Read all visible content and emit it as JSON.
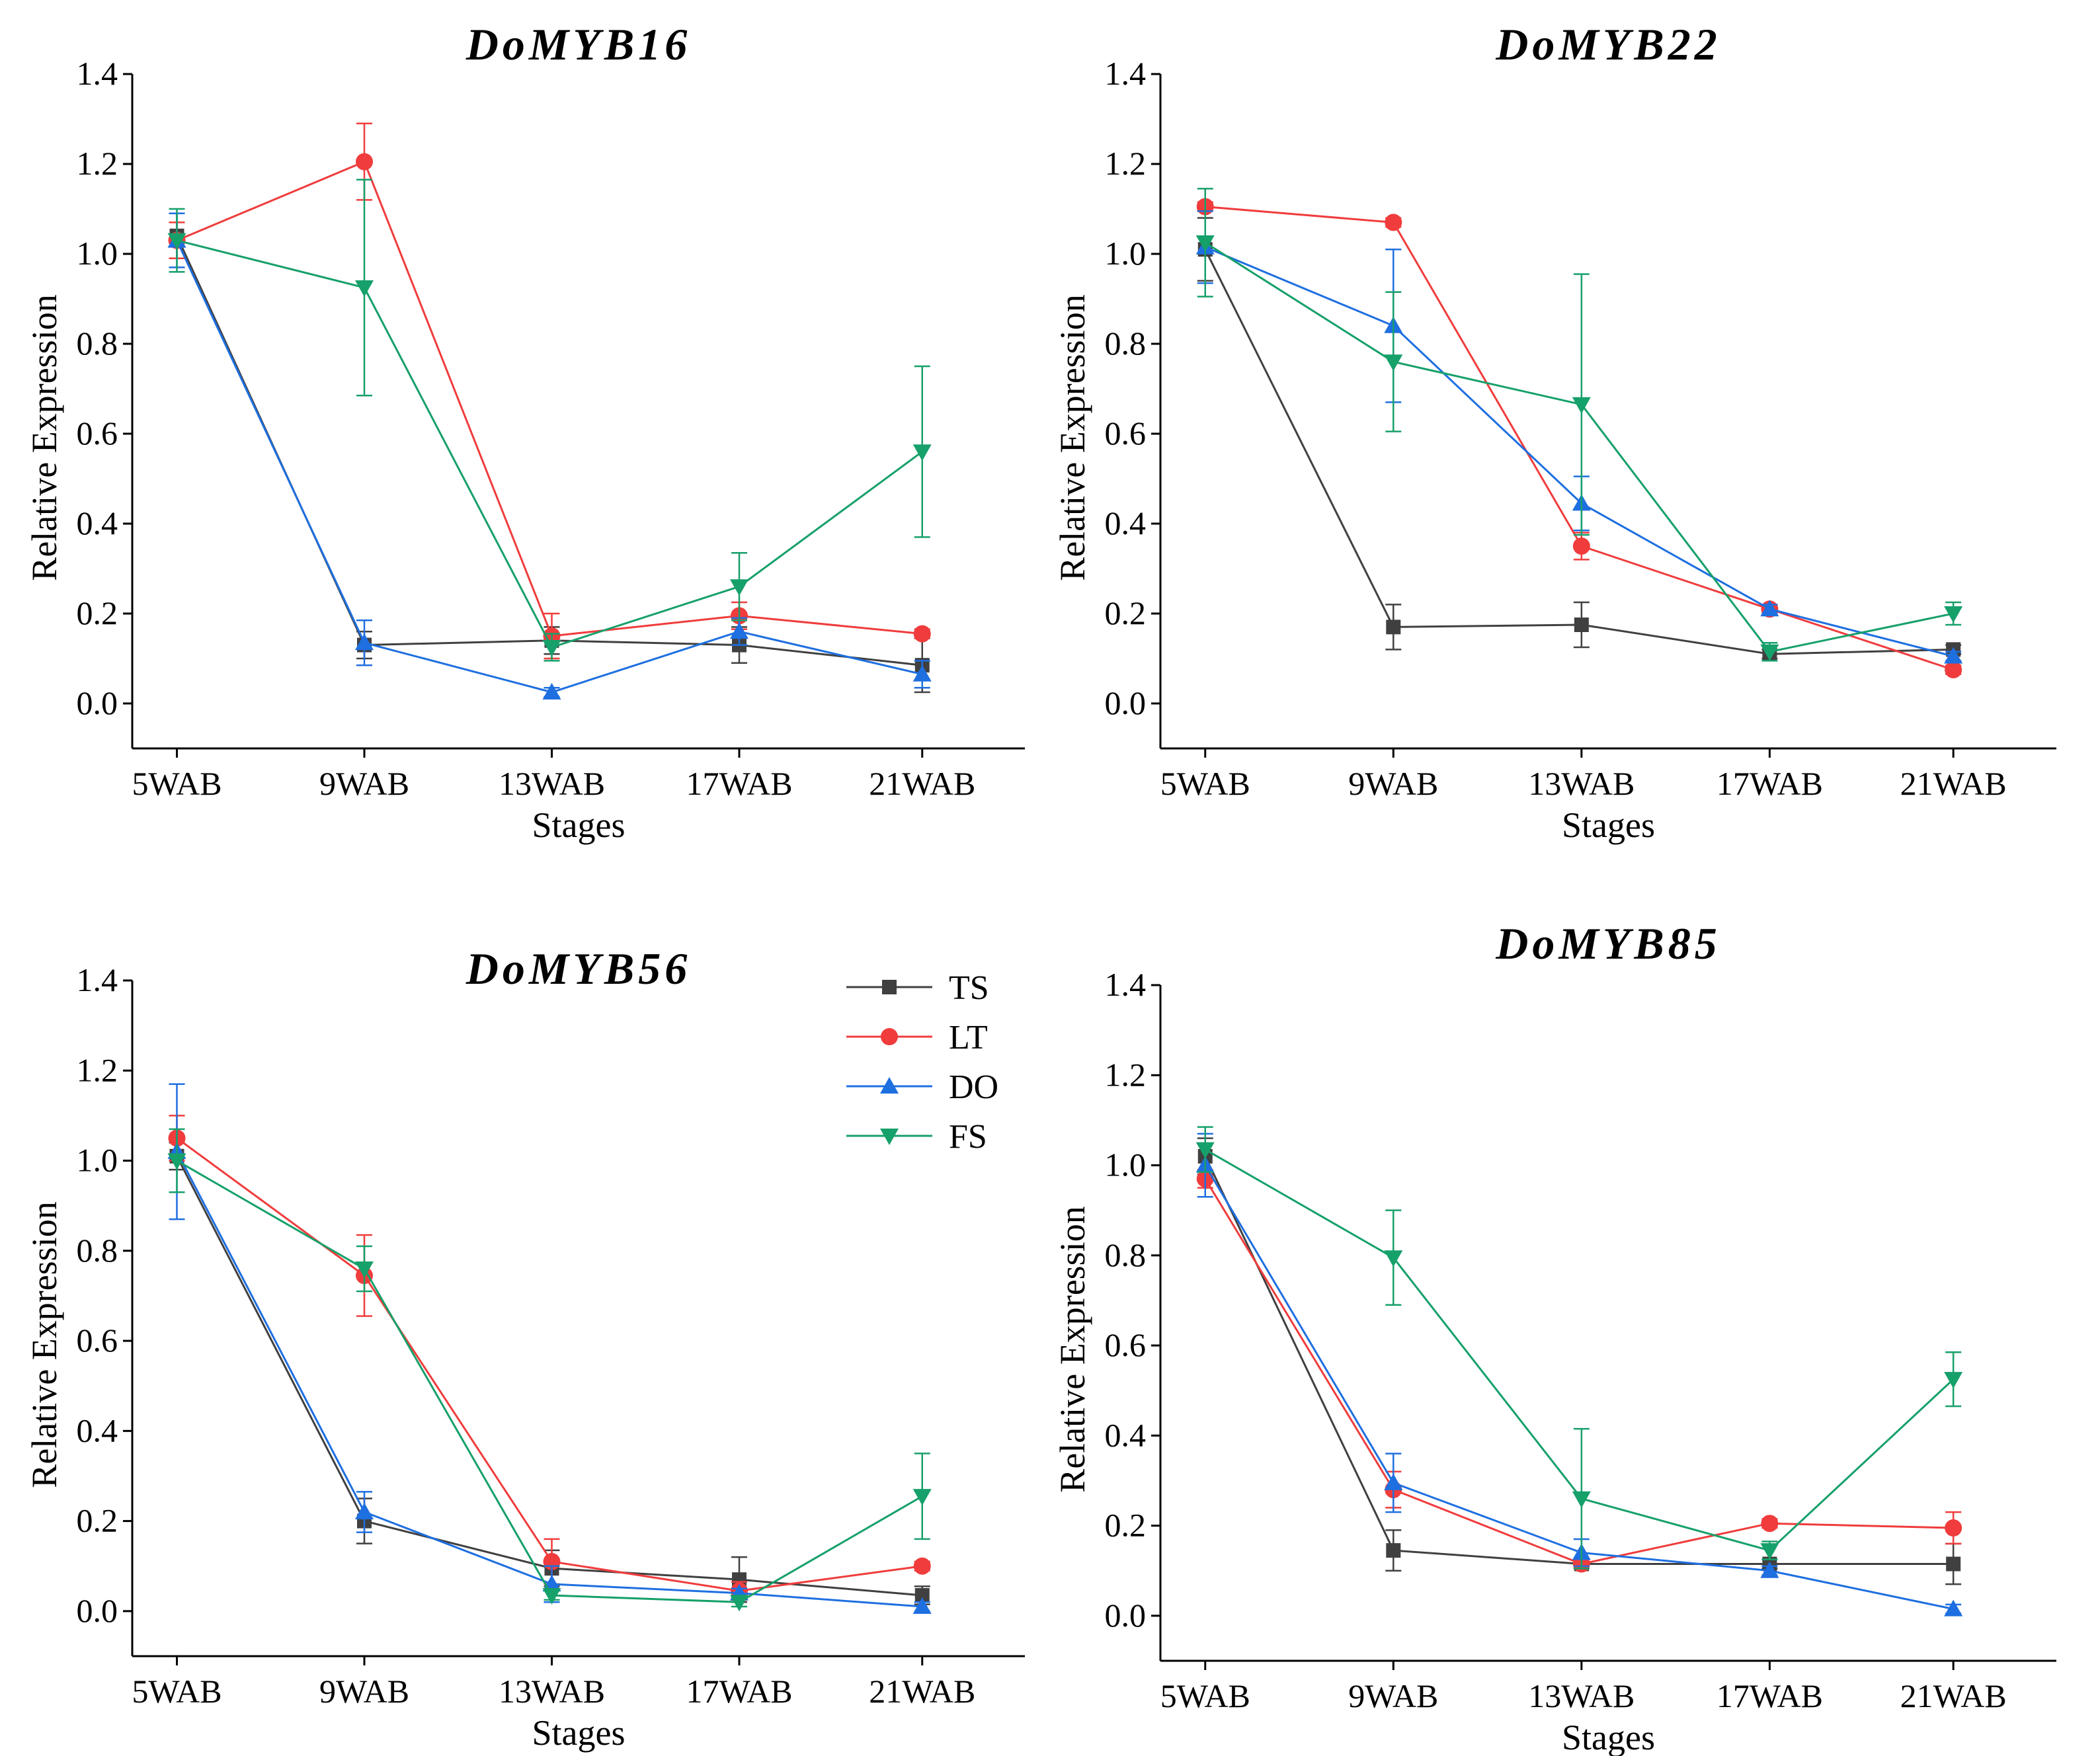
{
  "chart_data": [
    {
      "type": "line",
      "title": "DoMYB16",
      "xlabel": "Stages",
      "ylabel": "Relative Expression",
      "categories": [
        "5WAB",
        "9WAB",
        "13WAB",
        "17WAB",
        "21WAB"
      ],
      "ylim": [
        -0.1,
        1.4
      ],
      "yticks": [
        "0.0",
        "0.2",
        "0.4",
        "0.6",
        "0.8",
        "1.0",
        "1.2",
        "1.4"
      ],
      "series": [
        {
          "name": "TS",
          "values": [
            1.04,
            0.13,
            0.14,
            0.13,
            0.085
          ],
          "errors": [
            0.05,
            0.03,
            0.03,
            0.04,
            0.06
          ]
        },
        {
          "name": "LT",
          "values": [
            1.03,
            1.205,
            0.15,
            0.195,
            0.155
          ],
          "errors": [
            0.04,
            0.085,
            0.05,
            0.03,
            0.01
          ]
        },
        {
          "name": "DO",
          "values": [
            1.03,
            0.135,
            0.025,
            0.16,
            0.065
          ],
          "errors": [
            0.06,
            0.05,
            0.01,
            0.03,
            0.03
          ]
        },
        {
          "name": "FS",
          "values": [
            1.03,
            0.925,
            0.125,
            0.26,
            0.56
          ],
          "errors": [
            0.07,
            0.24,
            0.03,
            0.075,
            0.19
          ]
        }
      ]
    },
    {
      "type": "line",
      "title": "DoMYB22",
      "xlabel": "Stages",
      "ylabel": "Relative Expression",
      "categories": [
        "5WAB",
        "9WAB",
        "13WAB",
        "17WAB",
        "21WAB"
      ],
      "ylim": [
        -0.1,
        1.4
      ],
      "yticks": [
        "0.0",
        "0.2",
        "0.4",
        "0.6",
        "0.8",
        "1.0",
        "1.2",
        "1.4"
      ],
      "series": [
        {
          "name": "TS",
          "values": [
            1.01,
            0.17,
            0.175,
            0.11,
            0.12
          ],
          "errors": [
            0.07,
            0.05,
            0.05,
            0.01,
            0.01
          ]
        },
        {
          "name": "LT",
          "values": [
            1.105,
            1.07,
            0.35,
            0.21,
            0.075
          ],
          "errors": [
            0.01,
            0.01,
            0.03,
            0.01,
            0.01
          ]
        },
        {
          "name": "DO",
          "values": [
            1.015,
            0.84,
            0.445,
            0.21,
            0.105
          ],
          "errors": [
            0.08,
            0.17,
            0.06,
            0.01,
            0.01
          ]
        },
        {
          "name": "FS",
          "values": [
            1.025,
            0.76,
            0.665,
            0.115,
            0.2
          ],
          "errors": [
            0.12,
            0.155,
            0.29,
            0.02,
            0.025
          ]
        }
      ]
    },
    {
      "type": "line",
      "title": "DoMYB56",
      "xlabel": "Stages",
      "ylabel": "Relative Expression",
      "categories": [
        "5WAB",
        "9WAB",
        "13WAB",
        "17WAB",
        "21WAB"
      ],
      "ylim": [
        -0.1,
        1.4
      ],
      "yticks": [
        "0.0",
        "0.2",
        "0.4",
        "0.6",
        "0.8",
        "1.0",
        "1.2",
        "1.4"
      ],
      "legend": [
        "TS",
        "LT",
        "DO",
        "FS"
      ],
      "series": [
        {
          "name": "TS",
          "values": [
            1.01,
            0.2,
            0.095,
            0.07,
            0.035
          ],
          "errors": [
            0.03,
            0.05,
            0.04,
            0.05,
            0.02
          ]
        },
        {
          "name": "LT",
          "values": [
            1.05,
            0.745,
            0.11,
            0.045,
            0.1
          ],
          "errors": [
            0.05,
            0.09,
            0.05,
            0.02,
            0.01
          ]
        },
        {
          "name": "DO",
          "values": [
            1.02,
            0.22,
            0.06,
            0.04,
            0.01
          ],
          "errors": [
            0.15,
            0.045,
            0.04,
            0.01,
            0.01
          ]
        },
        {
          "name": "FS",
          "values": [
            1.0,
            0.76,
            0.035,
            0.02,
            0.255
          ],
          "errors": [
            0.07,
            0.05,
            0.01,
            0.01,
            0.095
          ]
        }
      ]
    },
    {
      "type": "line",
      "title": "DoMYB85",
      "xlabel": "Stages",
      "ylabel": "Relative Expression",
      "categories": [
        "5WAB",
        "9WAB",
        "13WAB",
        "17WAB",
        "21WAB"
      ],
      "ylim": [
        -0.1,
        1.4
      ],
      "yticks": [
        "0.0",
        "0.2",
        "0.4",
        "0.6",
        "0.8",
        "1.0",
        "1.2",
        "1.4"
      ],
      "series": [
        {
          "name": "TS",
          "values": [
            1.02,
            0.145,
            0.115,
            0.115,
            0.115
          ],
          "errors": [
            0.04,
            0.045,
            0.01,
            0.01,
            0.045
          ]
        },
        {
          "name": "LT",
          "values": [
            0.97,
            0.28,
            0.115,
            0.205,
            0.195
          ],
          "errors": [
            0.02,
            0.04,
            0.01,
            0.01,
            0.035
          ]
        },
        {
          "name": "DO",
          "values": [
            1.0,
            0.295,
            0.14,
            0.1,
            0.015
          ],
          "errors": [
            0.07,
            0.065,
            0.03,
            0.01,
            0.01
          ]
        },
        {
          "name": "FS",
          "values": [
            1.035,
            0.795,
            0.26,
            0.145,
            0.525
          ],
          "errors": [
            0.05,
            0.105,
            0.155,
            0.02,
            0.06
          ]
        }
      ]
    }
  ],
  "series_styles": {
    "TS": {
      "color": "#404040",
      "marker": "square-marker"
    },
    "LT": {
      "color": "#f03c3c",
      "marker": "circle-marker"
    },
    "DO": {
      "color": "#1e6fe0",
      "marker": "triangle-up-marker"
    },
    "FS": {
      "color": "#16a06a",
      "marker": "triangle-down-marker"
    }
  }
}
